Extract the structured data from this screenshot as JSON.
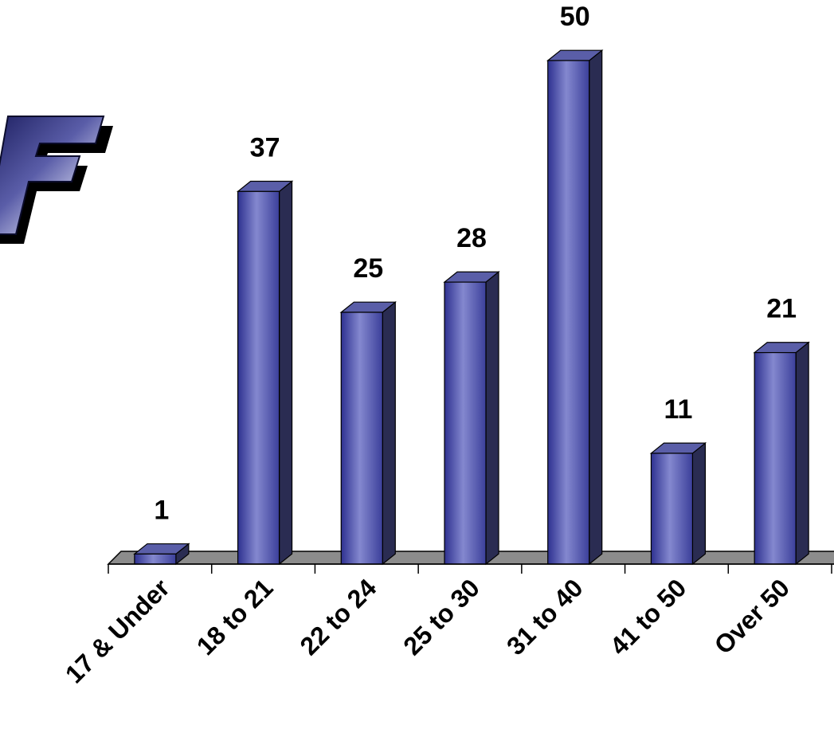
{
  "logo": {
    "icon": "stylized-letter-f-logo",
    "color": "#2b2d77"
  },
  "chart_data": {
    "type": "bar",
    "title": "",
    "xlabel": "",
    "ylabel": "",
    "categories": [
      "17 & Under",
      "18 to 21",
      "22 to 24",
      "25 to 30",
      "31 to 40",
      "41 to 50",
      "Over 50"
    ],
    "values": [
      1,
      37,
      25,
      28,
      50,
      11,
      21
    ],
    "data_labels": [
      "1",
      "37",
      "25",
      "28",
      "50",
      "11",
      "21"
    ],
    "ylim": [
      0,
      50
    ],
    "grid": false,
    "legend": "none",
    "style": "3d-column",
    "colors": {
      "bar_front": "#3b3f9a",
      "bar_highlight": "#8488cf",
      "bar_side": "#2a2c52",
      "bar_top": "#5a5ea8",
      "floor": "#8c8c8c",
      "labels": "#000000"
    }
  }
}
